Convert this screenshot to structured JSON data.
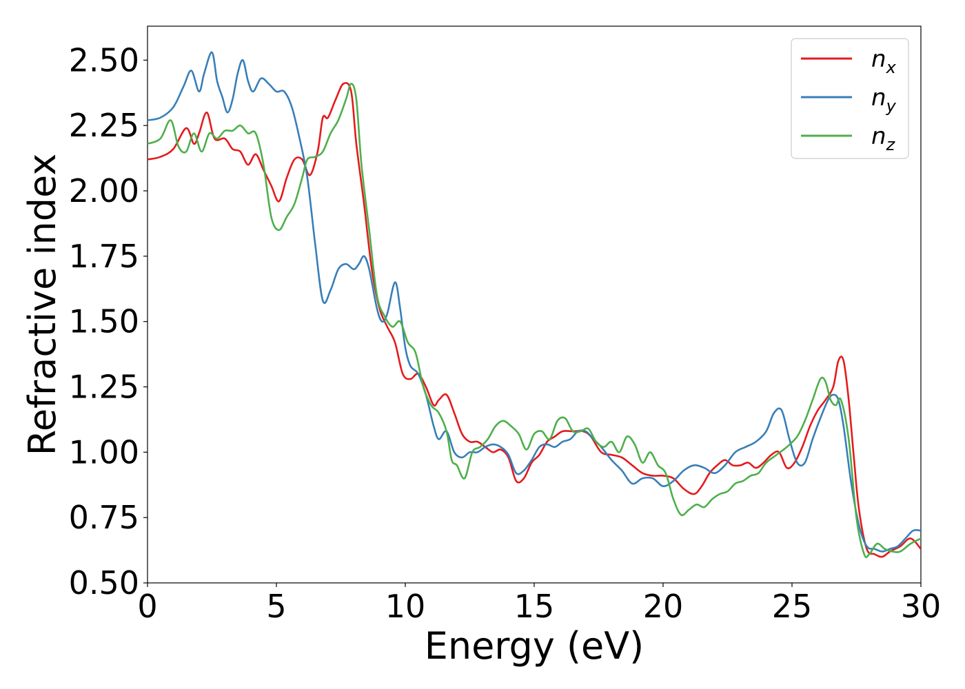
{
  "chart_data": {
    "type": "line",
    "title": "",
    "xlabel": "Energy (eV)",
    "ylabel": "Refractive index",
    "xlim": [
      0,
      30
    ],
    "ylim": [
      0.5,
      2.63
    ],
    "xticks": [
      "0",
      "5",
      "10",
      "15",
      "20",
      "25",
      "30"
    ],
    "yticks": [
      "0.50",
      "0.75",
      "1.00",
      "1.25",
      "1.50",
      "1.75",
      "2.00",
      "2.25",
      "2.50"
    ],
    "grid": false,
    "legend_position": "top-right",
    "series": [
      {
        "name": "n_x",
        "label_base": "n",
        "label_sub": "x",
        "color": "#e41a1c",
        "x": [
          0,
          0.5,
          1.0,
          1.5,
          1.8,
          2.0,
          2.3,
          2.6,
          3.0,
          3.3,
          3.6,
          3.9,
          4.2,
          4.5,
          4.8,
          5.1,
          5.4,
          5.7,
          6.0,
          6.3,
          6.6,
          6.8,
          7.0,
          7.3,
          7.6,
          7.9,
          8.1,
          8.4,
          8.7,
          9.0,
          9.3,
          9.6,
          9.9,
          10.2,
          10.5,
          10.8,
          11.1,
          11.3,
          11.6,
          11.9,
          12.2,
          12.5,
          12.8,
          13.1,
          13.4,
          13.7,
          14.0,
          14.3,
          14.6,
          14.9,
          15.2,
          15.5,
          15.8,
          16.1,
          16.5,
          16.9,
          17.2,
          17.6,
          18.0,
          18.4,
          18.8,
          19.2,
          19.6,
          20.0,
          20.4,
          20.8,
          21.2,
          21.5,
          21.8,
          22.1,
          22.4,
          22.7,
          23.0,
          23.3,
          23.6,
          23.9,
          24.2,
          24.5,
          24.8,
          25.1,
          25.4,
          25.7,
          26.0,
          26.3,
          26.6,
          26.8,
          27.0,
          27.2,
          27.4,
          27.6,
          27.9,
          28.2,
          28.5,
          28.8,
          29.2,
          29.6,
          30.0
        ],
        "y": [
          2.12,
          2.13,
          2.16,
          2.24,
          2.18,
          2.22,
          2.3,
          2.2,
          2.2,
          2.16,
          2.15,
          2.1,
          2.14,
          2.08,
          2.02,
          1.96,
          2.05,
          2.12,
          2.12,
          2.06,
          2.15,
          2.28,
          2.28,
          2.35,
          2.41,
          2.38,
          2.18,
          1.95,
          1.7,
          1.55,
          1.48,
          1.42,
          1.3,
          1.28,
          1.3,
          1.25,
          1.18,
          1.2,
          1.22,
          1.15,
          1.07,
          1.04,
          1.04,
          1.02,
          1.0,
          1.01,
          0.98,
          0.89,
          0.9,
          0.96,
          0.99,
          1.04,
          1.06,
          1.08,
          1.08,
          1.08,
          1.06,
          1.0,
          0.99,
          0.98,
          0.95,
          0.92,
          0.91,
          0.91,
          0.9,
          0.86,
          0.84,
          0.87,
          0.92,
          0.95,
          0.97,
          0.95,
          0.95,
          0.96,
          0.94,
          0.96,
          0.99,
          1.0,
          0.94,
          0.96,
          1.02,
          1.1,
          1.16,
          1.2,
          1.25,
          1.35,
          1.35,
          1.2,
          0.98,
          0.78,
          0.63,
          0.61,
          0.6,
          0.62,
          0.64,
          0.67,
          0.63
        ]
      },
      {
        "name": "n_y",
        "label_base": "n",
        "label_sub": "y",
        "color": "#377eb8",
        "x": [
          0,
          0.5,
          1.0,
          1.4,
          1.7,
          2.0,
          2.2,
          2.5,
          2.7,
          2.9,
          3.1,
          3.3,
          3.5,
          3.7,
          3.9,
          4.1,
          4.4,
          4.7,
          5.0,
          5.3,
          5.6,
          5.9,
          6.2,
          6.5,
          6.8,
          7.1,
          7.4,
          7.7,
          8.0,
          8.2,
          8.4,
          8.6,
          8.9,
          9.1,
          9.3,
          9.6,
          9.8,
          10.0,
          10.2,
          10.5,
          10.8,
          11.1,
          11.3,
          11.6,
          11.9,
          12.2,
          12.5,
          12.8,
          13.1,
          13.4,
          13.7,
          14.0,
          14.3,
          14.6,
          14.9,
          15.2,
          15.5,
          15.8,
          16.1,
          16.4,
          16.7,
          17.0,
          17.3,
          17.6,
          18.0,
          18.4,
          18.8,
          19.2,
          19.6,
          20.0,
          20.4,
          20.8,
          21.2,
          21.6,
          22.0,
          22.4,
          22.8,
          23.2,
          23.6,
          24.0,
          24.3,
          24.6,
          24.9,
          25.2,
          25.5,
          25.8,
          26.1,
          26.4,
          26.6,
          26.8,
          27.0,
          27.3,
          27.6,
          27.9,
          28.2,
          28.5,
          28.8,
          29.1,
          29.4,
          29.7,
          30.0
        ],
        "y": [
          2.27,
          2.28,
          2.32,
          2.4,
          2.46,
          2.38,
          2.45,
          2.53,
          2.42,
          2.36,
          2.3,
          2.35,
          2.45,
          2.5,
          2.42,
          2.38,
          2.43,
          2.41,
          2.38,
          2.38,
          2.32,
          2.2,
          2.05,
          1.8,
          1.58,
          1.62,
          1.7,
          1.72,
          1.7,
          1.72,
          1.75,
          1.7,
          1.55,
          1.5,
          1.53,
          1.65,
          1.55,
          1.4,
          1.33,
          1.3,
          1.22,
          1.1,
          1.05,
          1.08,
          1.0,
          0.98,
          1.0,
          1.0,
          1.02,
          1.03,
          1.02,
          0.99,
          0.92,
          0.93,
          0.97,
          1.02,
          1.03,
          1.02,
          1.04,
          1.05,
          1.08,
          1.08,
          1.05,
          1.02,
          0.97,
          0.93,
          0.88,
          0.9,
          0.9,
          0.87,
          0.89,
          0.93,
          0.95,
          0.94,
          0.92,
          0.95,
          1.0,
          1.02,
          1.04,
          1.08,
          1.15,
          1.16,
          1.05,
          0.96,
          0.96,
          1.05,
          1.13,
          1.2,
          1.22,
          1.2,
          1.1,
          0.88,
          0.72,
          0.64,
          0.63,
          0.62,
          0.63,
          0.64,
          0.67,
          0.7,
          0.7
        ]
      },
      {
        "name": "n_z",
        "label_base": "n",
        "label_sub": "z",
        "color": "#4daf4a",
        "x": [
          0,
          0.5,
          0.9,
          1.2,
          1.5,
          1.8,
          2.1,
          2.4,
          2.7,
          3.0,
          3.3,
          3.6,
          3.9,
          4.2,
          4.5,
          4.8,
          5.1,
          5.4,
          5.7,
          6.0,
          6.2,
          6.5,
          6.8,
          7.1,
          7.4,
          7.7,
          7.9,
          8.1,
          8.3,
          8.6,
          8.9,
          9.2,
          9.5,
          9.8,
          10.1,
          10.4,
          10.7,
          11.0,
          11.3,
          11.6,
          11.8,
          12.0,
          12.3,
          12.6,
          12.9,
          13.2,
          13.5,
          13.8,
          14.1,
          14.4,
          14.7,
          15.0,
          15.3,
          15.6,
          15.9,
          16.2,
          16.5,
          16.8,
          17.1,
          17.4,
          17.7,
          18.0,
          18.3,
          18.6,
          18.9,
          19.2,
          19.5,
          19.8,
          20.1,
          20.4,
          20.7,
          21.0,
          21.3,
          21.6,
          21.9,
          22.2,
          22.5,
          22.8,
          23.1,
          23.4,
          23.7,
          24.0,
          24.4,
          24.8,
          25.2,
          25.5,
          25.8,
          26.1,
          26.3,
          26.5,
          26.7,
          26.9,
          27.2,
          27.5,
          27.8,
          28.0,
          28.3,
          28.6,
          28.9,
          29.2,
          29.6,
          30.0
        ],
        "y": [
          2.18,
          2.2,
          2.27,
          2.17,
          2.15,
          2.22,
          2.15,
          2.22,
          2.2,
          2.23,
          2.23,
          2.25,
          2.22,
          2.22,
          2.1,
          1.9,
          1.85,
          1.9,
          1.95,
          2.05,
          2.12,
          2.13,
          2.15,
          2.22,
          2.27,
          2.35,
          2.41,
          2.35,
          2.1,
          1.85,
          1.6,
          1.52,
          1.48,
          1.5,
          1.42,
          1.38,
          1.25,
          1.18,
          1.15,
          1.08,
          0.97,
          0.95,
          0.9,
          1.0,
          1.02,
          1.05,
          1.1,
          1.12,
          1.1,
          1.07,
          1.01,
          1.07,
          1.08,
          1.05,
          1.12,
          1.13,
          1.08,
          1.08,
          1.09,
          1.04,
          1.02,
          1.04,
          1.0,
          1.06,
          1.03,
          0.96,
          1.0,
          0.95,
          0.92,
          0.82,
          0.76,
          0.78,
          0.8,
          0.79,
          0.82,
          0.84,
          0.85,
          0.88,
          0.89,
          0.91,
          0.92,
          0.96,
          0.99,
          1.02,
          1.06,
          1.12,
          1.2,
          1.28,
          1.27,
          1.2,
          1.18,
          1.2,
          1.05,
          0.75,
          0.61,
          0.61,
          0.65,
          0.63,
          0.62,
          0.62,
          0.65,
          0.67
        ]
      }
    ]
  }
}
